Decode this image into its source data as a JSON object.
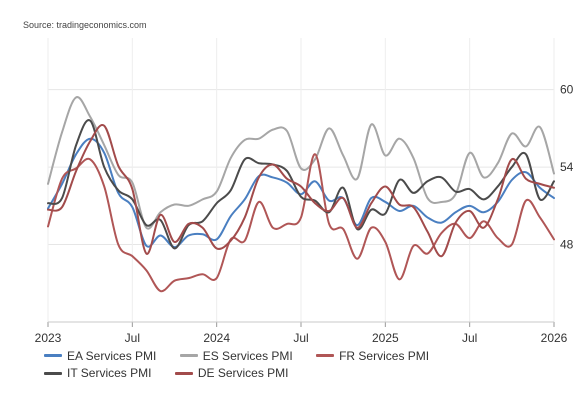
{
  "source": "Source: tradingeconomics.com",
  "chart_data": {
    "type": "line",
    "x": [
      "2023-01",
      "2023-02",
      "2023-03",
      "2023-04",
      "2023-05",
      "2023-06",
      "2023-07",
      "2023-08",
      "2023-09",
      "2023-10",
      "2023-11",
      "2023-12",
      "2024-01",
      "2024-02",
      "2024-03",
      "2024-04",
      "2024-05",
      "2024-06",
      "2024-07",
      "2024-08",
      "2024-09",
      "2024-10",
      "2024-11",
      "2024-12",
      "2025-01",
      "2025-02",
      "2025-03",
      "2025-04",
      "2025-05",
      "2025-06",
      "2025-07",
      "2025-08",
      "2025-09",
      "2025-10",
      "2025-11",
      "2025-12",
      "2026-01"
    ],
    "xticks": [
      "2023",
      "Jul",
      "2024",
      "Jul",
      "2025",
      "Jul",
      "2026"
    ],
    "yticks": [
      48,
      54,
      60
    ],
    "ylim": [
      42,
      64
    ],
    "series": [
      {
        "name": "EA Services PMI",
        "color": "#4a7fc1",
        "values": [
          50.8,
          52.7,
          55.0,
          56.2,
          55.1,
          52.0,
          50.9,
          47.9,
          48.7,
          47.8,
          48.7,
          48.8,
          48.4,
          50.2,
          51.5,
          53.3,
          53.2,
          52.8,
          51.9,
          52.9,
          51.4,
          51.6,
          49.5,
          51.6,
          51.3,
          50.6,
          51.0,
          50.1,
          49.7,
          50.5,
          51.0,
          50.5,
          51.3,
          53.0,
          53.6,
          52.4,
          51.6
        ]
      },
      {
        "name": "ES Services PMI",
        "color": "#a6a6a6",
        "values": [
          52.7,
          56.7,
          59.4,
          57.9,
          55.7,
          53.4,
          52.8,
          49.3,
          50.5,
          51.1,
          51.0,
          51.5,
          52.1,
          54.7,
          56.1,
          56.2,
          56.9,
          56.8,
          53.9,
          54.6,
          57.0,
          54.9,
          53.1,
          57.3,
          54.9,
          56.2,
          54.7,
          51.6,
          51.3,
          51.9,
          55.1,
          53.2,
          54.3,
          56.6,
          55.6,
          57.1,
          53.5
        ]
      },
      {
        "name": "FR Services PMI",
        "color": "#b05656",
        "values": [
          49.4,
          53.1,
          53.9,
          54.6,
          52.5,
          48.0,
          47.1,
          46.0,
          44.4,
          45.2,
          45.4,
          45.7,
          45.4,
          48.4,
          48.3,
          51.3,
          49.3,
          49.6,
          50.1,
          55.0,
          49.6,
          49.2,
          46.9,
          49.3,
          48.2,
          45.3,
          47.9,
          47.3,
          48.9,
          49.6,
          48.5,
          49.8,
          48.5,
          48.0,
          51.4,
          50.1,
          48.4
        ]
      },
      {
        "name": "IT Services PMI",
        "color": "#4b4b4b",
        "values": [
          51.2,
          51.6,
          55.7,
          57.6,
          54.0,
          52.2,
          51.5,
          49.5,
          49.9,
          47.7,
          49.5,
          49.8,
          51.2,
          52.2,
          54.6,
          54.3,
          54.2,
          53.7,
          51.7,
          51.4,
          50.5,
          52.4,
          49.2,
          50.7,
          50.4,
          53.0,
          52.0,
          52.9,
          53.2,
          52.1,
          52.3,
          51.5,
          52.5,
          54.0,
          55.0,
          51.5,
          52.9
        ]
      },
      {
        "name": "DE Services PMI",
        "color": "#a24b4b",
        "values": [
          50.7,
          50.9,
          53.7,
          56.0,
          57.2,
          54.1,
          52.3,
          47.3,
          50.3,
          48.2,
          49.6,
          49.3,
          47.7,
          48.3,
          50.1,
          53.2,
          54.2,
          53.1,
          52.5,
          51.2,
          50.6,
          51.6,
          49.3,
          51.2,
          52.5,
          51.1,
          50.9,
          49.0,
          47.1,
          49.7,
          50.6,
          49.3,
          51.5,
          54.6,
          53.1,
          52.7,
          52.4
        ]
      }
    ]
  }
}
